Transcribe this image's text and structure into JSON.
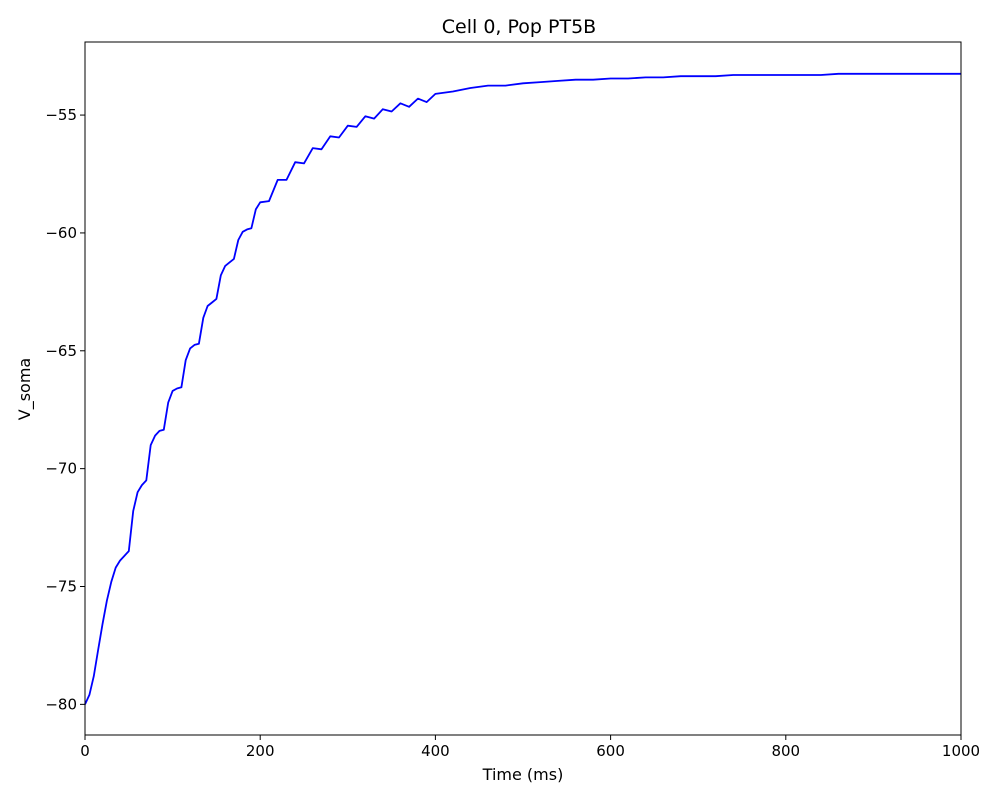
{
  "chart_data": {
    "type": "line",
    "title": "Cell 0, Pop PT5B",
    "xlabel": "Time (ms)",
    "ylabel": "V_soma",
    "xlim": [
      0,
      1000
    ],
    "ylim": [
      -81.3,
      -51.9
    ],
    "xticks": [
      0,
      200,
      400,
      600,
      800,
      1000
    ],
    "xtick_labels": [
      "0",
      "200",
      "400",
      "600",
      "800",
      "1000"
    ],
    "yticks": [
      -80,
      -75,
      -70,
      -65,
      -60,
      -55
    ],
    "ytick_labels": [
      "−80",
      "−75",
      "−70",
      "−65",
      "−60",
      "−55"
    ],
    "grid": false,
    "legend": "none",
    "line_color": "#0000ff",
    "series": [
      {
        "x": [
          0,
          5,
          10,
          15,
          20,
          25,
          30,
          35,
          40,
          45,
          50,
          55,
          60,
          65,
          70,
          75,
          80,
          85,
          90,
          95,
          100,
          105,
          110,
          115,
          120,
          125,
          130,
          135,
          140,
          145,
          150,
          155,
          160,
          165,
          170,
          175,
          180,
          185,
          190,
          195,
          200,
          210,
          220,
          230,
          240,
          250,
          260,
          270,
          280,
          290,
          300,
          310,
          320,
          330,
          340,
          350,
          360,
          370,
          380,
          390,
          400,
          420,
          440,
          460,
          480,
          500,
          520,
          540,
          560,
          580,
          600,
          620,
          640,
          660,
          680,
          700,
          720,
          740,
          760,
          780,
          800,
          820,
          840,
          860,
          880,
          900,
          920,
          940,
          960,
          980,
          1000
        ],
        "values": [
          -80.0,
          -79.6,
          -78.8,
          -77.7,
          -76.6,
          -75.6,
          -74.8,
          -74.2,
          -73.9,
          -73.7,
          -73.5,
          -71.8,
          -71.0,
          -70.7,
          -70.5,
          -69.0,
          -68.6,
          -68.4,
          -68.35,
          -67.2,
          -66.7,
          -66.6,
          -66.55,
          -65.4,
          -64.9,
          -64.75,
          -64.7,
          -63.6,
          -63.1,
          -62.95,
          -62.8,
          -61.8,
          -61.4,
          -61.25,
          -61.1,
          -60.3,
          -59.95,
          -59.85,
          -59.8,
          -59.0,
          -58.7,
          -58.65,
          -57.75,
          -57.75,
          -57.0,
          -57.05,
          -56.4,
          -56.45,
          -55.9,
          -55.95,
          -55.45,
          -55.5,
          -55.05,
          -55.15,
          -54.75,
          -54.85,
          -54.5,
          -54.65,
          -54.3,
          -54.45,
          -54.1,
          -54.0,
          -53.85,
          -53.75,
          -53.75,
          -53.65,
          -53.6,
          -53.55,
          -53.5,
          -53.5,
          -53.45,
          -53.45,
          -53.4,
          -53.4,
          -53.35,
          -53.35,
          -53.35,
          -53.3,
          -53.3,
          -53.3,
          -53.3,
          -53.3,
          -53.3,
          -53.25,
          -53.25,
          -53.25,
          -53.25,
          -53.25,
          -53.25,
          -53.25,
          -53.25
        ]
      }
    ]
  }
}
